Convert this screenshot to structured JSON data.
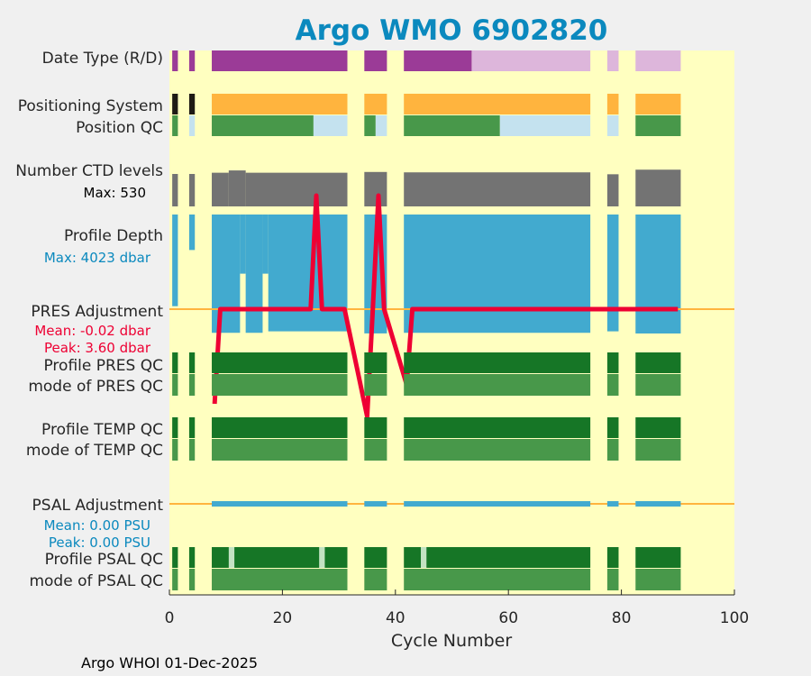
{
  "colors": {
    "figure_bg": "#f0f0f0",
    "plot_bg": "#ffffc0",
    "gap": "#ffffc0",
    "title": "#0b89be",
    "realtime": "#9b3b97",
    "delayed": "#ddb6db",
    "pos_system": "#ffb43e",
    "pos_system_alt": "#1e1a14",
    "qc_good": "#48984a",
    "qc_good_dark": "#167626",
    "qc_interp": "#c4e2ef",
    "qc_flag": "#c3e2c3",
    "ctd": "#737373",
    "depth": "#42aacf",
    "pres_line": "#ee0033",
    "zero_line": "#ffb43e",
    "axis": "#262626"
  },
  "chart_data": {
    "type": "timeline",
    "title": "Argo WMO 6902820",
    "xlabel": "Cycle Number",
    "xlim": [
      0,
      100
    ],
    "xticks": [
      0,
      20,
      40,
      60,
      80,
      100
    ],
    "row_labels": {
      "date_type": "Date Type (R/D)",
      "positioning_system": "Positioning System",
      "position_qc": "Position QC",
      "ctd_levels": "Number CTD levels",
      "profile_depth": "Profile Depth",
      "pres_adjustment": "PRES Adjustment",
      "profile_pres_qc": "Profile PRES QC",
      "mode_pres_qc": "mode of PRES QC",
      "profile_temp_qc": "Profile TEMP QC",
      "mode_temp_qc": "mode of TEMP QC",
      "psal_adjustment": "PSAL Adjustment",
      "profile_psal_qc": "Profile PSAL QC",
      "mode_psal_qc": "mode of PSAL QC"
    },
    "annotations": {
      "ctd_max": "Max: 530",
      "depth_max": "Max: 4023 dbar",
      "pres_mean": "Mean: -0.02 dbar",
      "pres_peak": "Peak: 3.60 dbar",
      "psal_mean": "Mean: 0.00 PSU",
      "psal_peak": "Peak: 0.00 PSU"
    },
    "cycle_ranges": [
      [
        0.5,
        1.5
      ],
      [
        3.5,
        4.5
      ],
      [
        7.5,
        31.5
      ],
      [
        34.5,
        38.5
      ],
      [
        41.5,
        74.5
      ],
      [
        77.5,
        79.5
      ],
      [
        82.5,
        90.5
      ]
    ],
    "singles": [
      1,
      4
    ],
    "date_type": [
      {
        "from": 0.5,
        "to": 1.5,
        "mode": "R"
      },
      {
        "from": 3.5,
        "to": 4.5,
        "mode": "R"
      },
      {
        "from": 7.5,
        "to": 31.5,
        "mode": "R"
      },
      {
        "from": 34.5,
        "to": 38.5,
        "mode": "R"
      },
      {
        "from": 41.5,
        "to": 53.5,
        "mode": "R"
      },
      {
        "from": 53.5,
        "to": 74.5,
        "mode": "D"
      },
      {
        "from": 77.5,
        "to": 79.5,
        "mode": "D"
      },
      {
        "from": 82.5,
        "to": 90.5,
        "mode": "D"
      }
    ],
    "position_qc": [
      {
        "from": 0.5,
        "to": 1.5,
        "code": "good"
      },
      {
        "from": 3.5,
        "to": 4.5,
        "code": "interp"
      },
      {
        "from": 7.5,
        "to": 25.5,
        "code": "good"
      },
      {
        "from": 25.5,
        "to": 31.5,
        "code": "interp"
      },
      {
        "from": 34.5,
        "to": 36.5,
        "code": "good"
      },
      {
        "from": 36.5,
        "to": 38.5,
        "code": "interp"
      },
      {
        "from": 41.5,
        "to": 58.5,
        "code": "good"
      },
      {
        "from": 58.5,
        "to": 74.5,
        "code": "interp"
      },
      {
        "from": 77.5,
        "to": 79.5,
        "code": "interp"
      },
      {
        "from": 82.5,
        "to": 90.5,
        "code": "good"
      }
    ],
    "ctd_levels_max": 530,
    "ctd_levels": [
      {
        "from": 7.5,
        "to": 10.5,
        "v": 440
      },
      {
        "from": 10.5,
        "to": 13.5,
        "v": 470
      },
      {
        "from": 13.5,
        "to": 31.5,
        "v": 440
      },
      {
        "from": 34.5,
        "to": 38.5,
        "v": 450
      },
      {
        "from": 41.5,
        "to": 74.5,
        "v": 445
      },
      {
        "from": 77.5,
        "to": 79.5,
        "v": 420
      },
      {
        "from": 82.5,
        "to": 90.5,
        "v": 480
      }
    ],
    "profile_depth_max": 4023,
    "profile_depth": [
      {
        "from": 0.5,
        "to": 1.5,
        "v": 3100
      },
      {
        "from": 3.5,
        "to": 4.5,
        "v": 1200
      },
      {
        "from": 7.5,
        "to": 12.5,
        "v": 4000
      },
      {
        "from": 12.5,
        "to": 13.5,
        "v": 2000
      },
      {
        "from": 13.5,
        "to": 16.5,
        "v": 4000
      },
      {
        "from": 16.5,
        "to": 17.5,
        "v": 2000
      },
      {
        "from": 17.5,
        "to": 31.5,
        "v": 3950
      },
      {
        "from": 34.5,
        "to": 38.5,
        "v": 4020
      },
      {
        "from": 41.5,
        "to": 74.5,
        "v": 4000
      },
      {
        "from": 77.5,
        "to": 79.5,
        "v": 3950
      },
      {
        "from": 82.5,
        "to": 90.5,
        "v": 4023
      }
    ],
    "pres_adjustment": {
      "x": [
        8,
        9,
        10,
        25,
        26,
        27,
        31,
        35,
        36,
        37,
        38,
        42,
        43,
        74,
        78,
        79,
        83,
        90
      ],
      "y": [
        -3.0,
        0.0,
        0.0,
        0.0,
        3.6,
        0.0,
        0.0,
        -3.4,
        0.0,
        3.6,
        0.0,
        -2.4,
        0.0,
        0.0,
        0.0,
        0.0,
        0.0,
        0.0
      ]
    },
    "psal_adjustment": {
      "x": [
        8,
        31,
        35,
        38,
        42,
        74,
        78,
        79,
        83,
        90
      ],
      "y": [
        0,
        0,
        0,
        0,
        0,
        0,
        0,
        0,
        0,
        0
      ]
    },
    "psal_qc_flags": [
      11,
      27,
      45
    ],
    "footer": "Argo WHOI 01-Dec-2025"
  }
}
